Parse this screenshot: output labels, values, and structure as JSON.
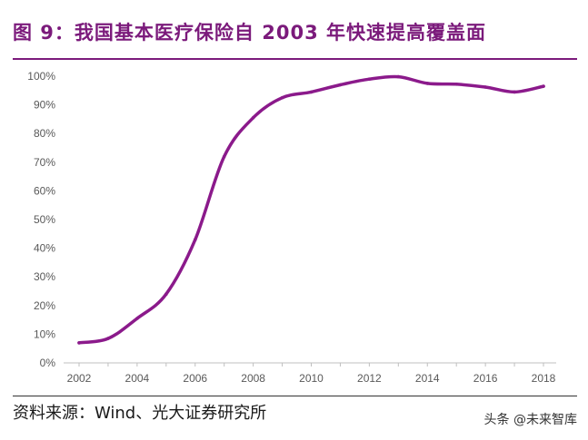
{
  "header": {
    "title": "图 9：我国基本医疗保险自 2003 年快速提高覆盖面"
  },
  "footer": {
    "source": "资料来源：Wind、光大证券研究所",
    "watermark": "头条 @未来智库"
  },
  "colors": {
    "accent": "#7b1a7b",
    "line": "#8b1a8b"
  },
  "chart_data": {
    "type": "line",
    "title": "图 9：我国基本医疗保险自 2003 年快速提高覆盖面",
    "xlabel": "",
    "ylabel": "",
    "x": [
      2002,
      2003,
      2004,
      2005,
      2006,
      2007,
      2008,
      2009,
      2010,
      2011,
      2012,
      2013,
      2014,
      2015,
      2016,
      2017,
      2018
    ],
    "series": [
      {
        "values": [
          0.07,
          0.085,
          0.155,
          0.24,
          0.43,
          0.72,
          0.855,
          0.925,
          0.945,
          0.97,
          0.99,
          0.998,
          0.975,
          0.972,
          0.962,
          0.945,
          0.965
        ]
      }
    ],
    "xticks": [
      "2002",
      "2004",
      "2006",
      "2008",
      "2010",
      "2012",
      "2014",
      "2016",
      "2018"
    ],
    "yticks": [
      "0%",
      "10%",
      "20%",
      "30%",
      "40%",
      "50%",
      "60%",
      "70%",
      "80%",
      "90%",
      "100%"
    ],
    "ylim": [
      0,
      1
    ],
    "xlim": [
      2002,
      2018
    ],
    "grid": false,
    "legend": "none"
  }
}
